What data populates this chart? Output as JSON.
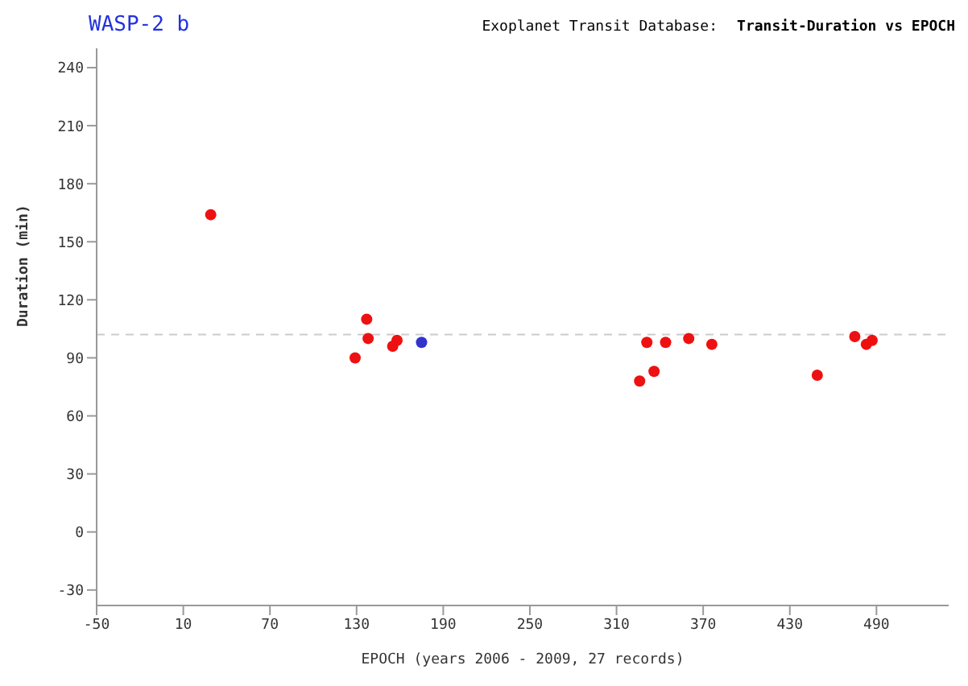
{
  "chart_data": {
    "type": "scatter",
    "title": "WASP-2 b",
    "subtitle": "Exoplanet Transit Database:",
    "annotations": [
      "Transit-Duration vs EPOCH"
    ],
    "xlabel": "EPOCH  (years 2006 - 2009, 27 records)",
    "ylabel": "Duration (min)",
    "xlim": [
      -50,
      540
    ],
    "xticks": [
      -50,
      10,
      70,
      130,
      190,
      250,
      310,
      370,
      430,
      490
    ],
    "ylim": [
      -38,
      250
    ],
    "yticks": [
      -30,
      0,
      30,
      60,
      90,
      120,
      150,
      180,
      210,
      240
    ],
    "grid": false,
    "marker": "circle",
    "ref_lines": [
      {
        "axis": "y",
        "value": 102,
        "color": "#cccccc",
        "line_style": "dashed"
      }
    ],
    "series": [
      {
        "color": "#ee1111",
        "x": [
          29,
          129,
          137,
          138,
          155,
          158,
          326,
          331,
          336,
          344,
          360,
          376,
          449,
          475,
          483,
          487
        ],
        "values": [
          164,
          90,
          110,
          100,
          96,
          99,
          78,
          98,
          83,
          98,
          100,
          97,
          81,
          101,
          97,
          99
        ]
      },
      {
        "color": "#3333cc",
        "x": [
          175
        ],
        "values": [
          98
        ]
      }
    ]
  }
}
